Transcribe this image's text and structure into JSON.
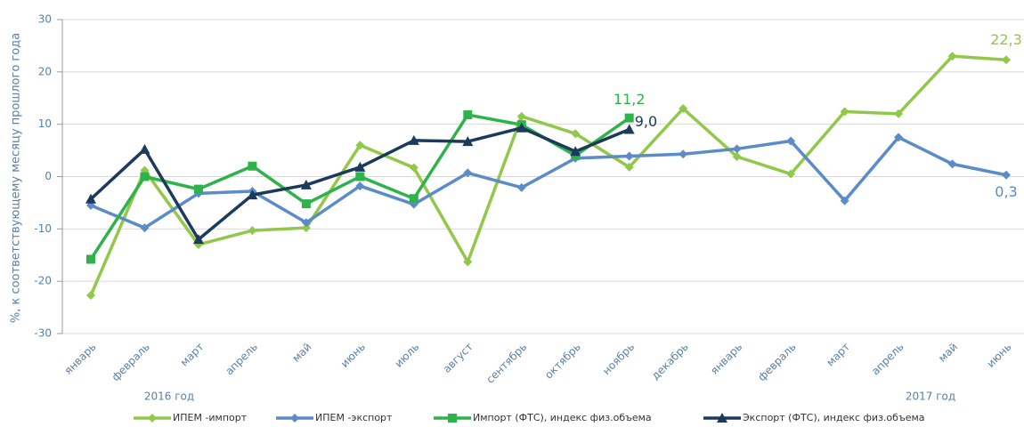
{
  "chart_data": {
    "type": "line",
    "y_axis_label": "%, к соответствующему месяцу прошлого года",
    "annotations": [
      "2016 год",
      "2017 год"
    ],
    "categories": [
      "январь",
      "февраль",
      "март",
      "апрель",
      "май",
      "июнь",
      "июль",
      "август",
      "сентябрь",
      "октябрь",
      "ноябрь",
      "декабрь",
      "январь",
      "февраль",
      "март",
      "апрель",
      "май",
      "июнь"
    ],
    "ylim": [
      -30,
      30
    ],
    "yticks": [
      30,
      20,
      10,
      0,
      -10,
      -20,
      -30
    ],
    "grid": true,
    "legend": "bottom",
    "series": [
      {
        "name": "ИПЕМ -импорт",
        "color": "#92c84a",
        "marker": "diamond",
        "values": [
          -22.7,
          1.2,
          -13.0,
          -10.3,
          -9.8,
          6.0,
          1.7,
          -16.3,
          11.5,
          8.2,
          1.8,
          13.0,
          3.8,
          0.5,
          12.4,
          12.0,
          23.0,
          22.3
        ],
        "value_labels": [
          null,
          null,
          null,
          null,
          null,
          null,
          null,
          null,
          null,
          null,
          null,
          null,
          null,
          null,
          null,
          null,
          null,
          "22,3"
        ]
      },
      {
        "name": "ИПЕМ -экспорт",
        "color": "#5b8cc8",
        "marker": "diamond",
        "values": [
          -5.5,
          -9.8,
          -3.2,
          -2.8,
          -8.8,
          -1.8,
          -5.3,
          0.7,
          -2.1,
          3.5,
          3.9,
          4.3,
          5.3,
          6.8,
          -4.6,
          7.5,
          2.4,
          0.3
        ],
        "value_labels": [
          null,
          null,
          null,
          null,
          null,
          null,
          null,
          null,
          null,
          null,
          null,
          null,
          null,
          null,
          null,
          null,
          null,
          "0,3"
        ]
      },
      {
        "name": "Импорт (ФТС), индекс физ.объема",
        "color": "#2db34a",
        "marker": "square",
        "values": [
          -15.8,
          0.0,
          -2.4,
          2.0,
          -5.2,
          0.0,
          -4.2,
          11.8,
          9.9,
          4.0,
          11.2,
          null,
          null,
          null,
          null,
          null,
          null,
          null
        ],
        "value_labels": [
          null,
          null,
          null,
          null,
          null,
          null,
          null,
          null,
          null,
          null,
          "11,2",
          null,
          null,
          null,
          null,
          null,
          null,
          null
        ]
      },
      {
        "name": "Экспорт (ФТС), индекс физ.объема",
        "color": "#1b3a5c",
        "marker": "triangle",
        "values": [
          -4.3,
          5.2,
          -12.0,
          -3.5,
          -1.6,
          1.8,
          6.9,
          6.7,
          9.3,
          4.8,
          9.0,
          null,
          null,
          null,
          null,
          null,
          null,
          null
        ],
        "value_labels": [
          null,
          null,
          null,
          null,
          null,
          null,
          null,
          null,
          null,
          null,
          "9,0",
          null,
          null,
          null,
          null,
          null,
          null,
          null
        ]
      }
    ]
  }
}
